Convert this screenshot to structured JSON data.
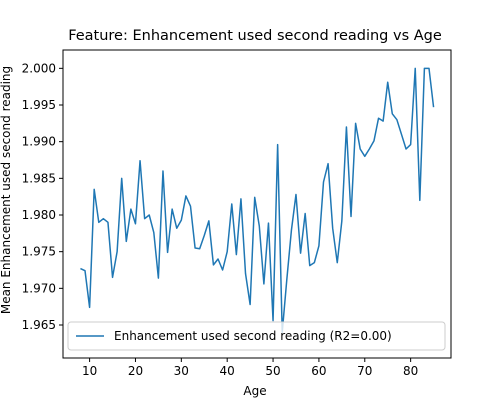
{
  "chart_data": {
    "type": "line",
    "title": "Feature: Enhancement used second reading vs Age",
    "xlabel": "Age",
    "ylabel": "Mean Enhancement used second reading",
    "xlim": [
      4.2,
      88.8
    ],
    "ylim": [
      1.9605,
      2.0025
    ],
    "xticks": [
      10,
      20,
      30,
      40,
      50,
      60,
      70,
      80
    ],
    "yticks": [
      1.965,
      1.97,
      1.975,
      1.98,
      1.985,
      1.99,
      1.995,
      2.0
    ],
    "ytick_labels": [
      "1.965",
      "1.970",
      "1.975",
      "1.980",
      "1.985",
      "1.990",
      "1.995",
      "2.000"
    ],
    "grid": false,
    "legend_position": "lower-left",
    "series": [
      {
        "name": "Enhancement used second reading (R2=0.00)",
        "color": "#1f77b4",
        "x": [
          8,
          9,
          10,
          11,
          12,
          13,
          14,
          15,
          16,
          17,
          18,
          19,
          20,
          21,
          22,
          23,
          24,
          25,
          26,
          27,
          28,
          29,
          30,
          31,
          32,
          33,
          34,
          35,
          36,
          37,
          38,
          39,
          40,
          41,
          42,
          43,
          44,
          45,
          46,
          47,
          48,
          49,
          50,
          51,
          52,
          53,
          54,
          55,
          56,
          57,
          58,
          59,
          60,
          61,
          62,
          63,
          64,
          65,
          66,
          67,
          68,
          69,
          70,
          71,
          72,
          73,
          74,
          75,
          76,
          77,
          78,
          79,
          80,
          81,
          82,
          83,
          84,
          85
        ],
        "y": [
          1.9727,
          1.9724,
          1.9674,
          1.9835,
          1.979,
          1.9795,
          1.979,
          1.9715,
          1.975,
          1.985,
          1.9764,
          1.9808,
          1.9788,
          1.9874,
          1.9795,
          1.98,
          1.9776,
          1.9714,
          1.986,
          1.9749,
          1.9808,
          1.9782,
          1.9793,
          1.9826,
          1.9812,
          1.9755,
          1.9754,
          1.9772,
          1.9792,
          1.9732,
          1.974,
          1.9725,
          1.975,
          1.9815,
          1.9746,
          1.9822,
          1.972,
          1.9678,
          1.9824,
          1.9785,
          1.9706,
          1.9789,
          1.9656,
          1.9896,
          1.964,
          1.9712,
          1.9779,
          1.9828,
          1.9748,
          1.9802,
          1.9731,
          1.9735,
          1.9758,
          1.9845,
          1.987,
          1.9782,
          1.9735,
          1.9792,
          1.992,
          1.9798,
          1.9925,
          1.989,
          1.988,
          1.989,
          1.9901,
          1.9932,
          1.9928,
          1.9981,
          1.9938,
          1.993,
          1.991,
          1.989,
          1.9896,
          2.0,
          1.982,
          2.0,
          2.0,
          1.9947
        ]
      }
    ]
  }
}
